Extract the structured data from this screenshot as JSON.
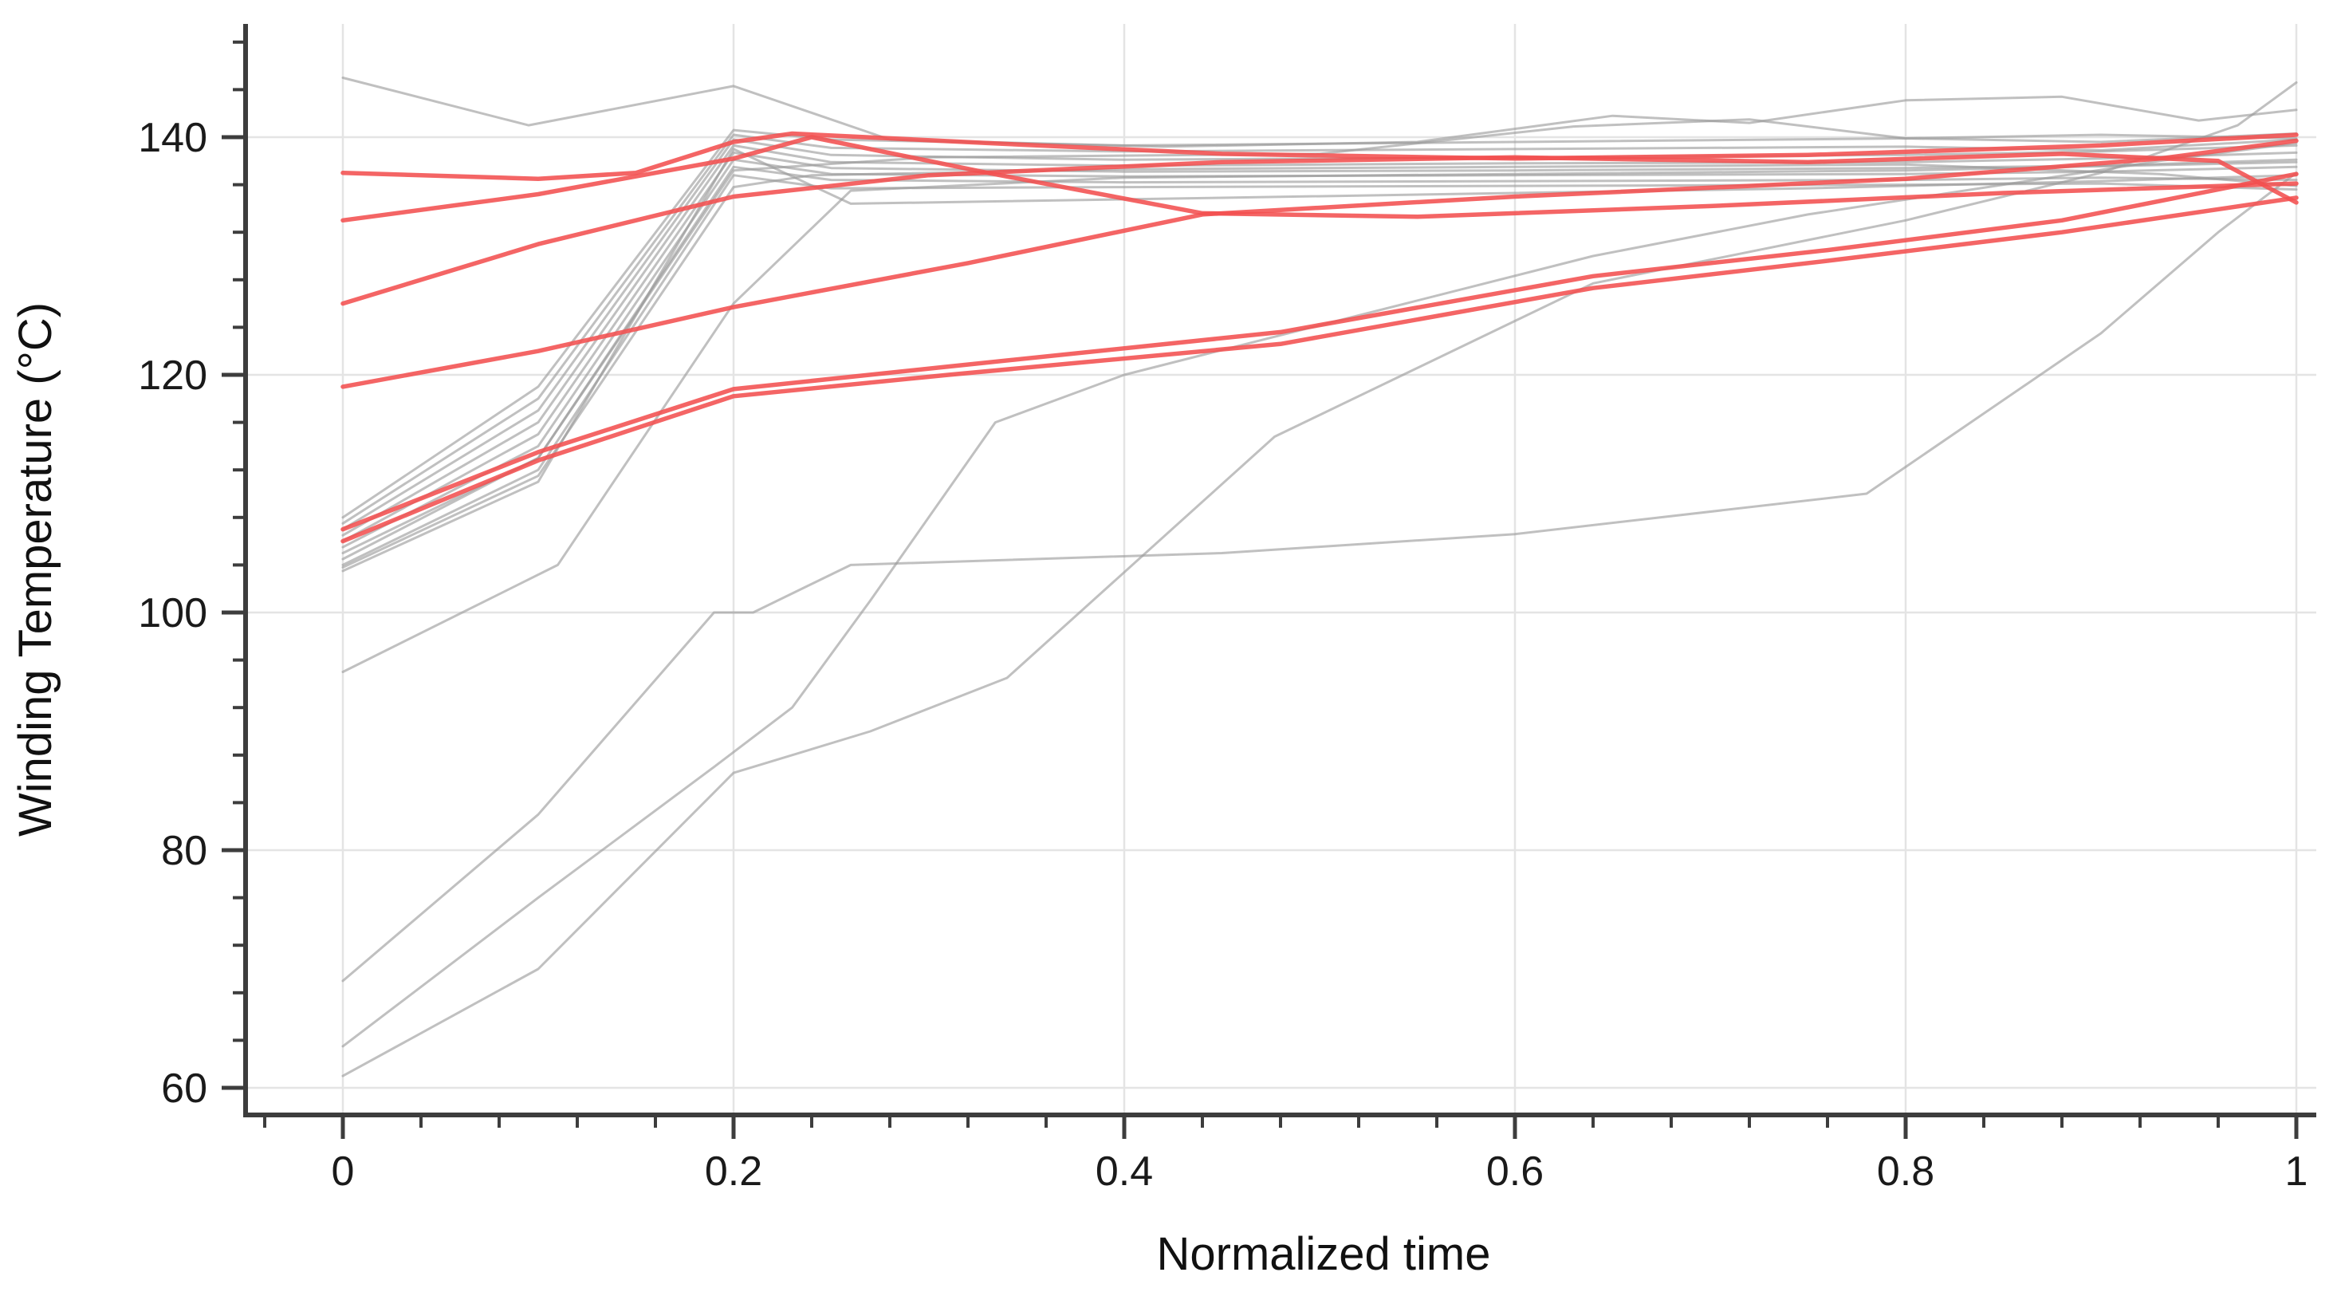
{
  "chart_data": {
    "type": "line",
    "title": "",
    "xlabel": "Normalized time",
    "ylabel": "Winding Temperature (°C)",
    "xlim": [
      0,
      1
    ],
    "ylim": [
      56,
      150
    ],
    "x_ticks": [
      0,
      0.2,
      0.4,
      0.6,
      0.8,
      1
    ],
    "x_tick_labels": [
      "0",
      "0.2",
      "0.4",
      "0.6",
      "0.8",
      "1"
    ],
    "x_minor_step": 0.04,
    "y_ticks": [
      60,
      80,
      100,
      120,
      140
    ],
    "y_tick_labels": [
      "60",
      "80",
      "100",
      "120",
      "140"
    ],
    "y_minor_step": 4,
    "grid": true,
    "legend": false,
    "colors": {
      "highlight": "#f25050",
      "base": "#9a9a9a",
      "grid": "#e4e4e4",
      "axis": "#3d3d3d",
      "text": "#111111",
      "background": "#ffffff"
    },
    "series": [
      {
        "name": "gray-1",
        "color": "gray",
        "x": [
          0,
          0.095,
          0.2,
          0.28,
          0.42,
          0.55,
          0.65,
          0.72,
          0.8,
          0.88,
          0.95,
          1
        ],
        "y": [
          145,
          141,
          144.3,
          139.8,
          139.2,
          139.6,
          141.8,
          141.2,
          143.1,
          143.4,
          141.4,
          142.3
        ]
      },
      {
        "name": "gray-2",
        "color": "gray",
        "x": [
          0,
          0.1,
          0.2,
          0.25,
          0.4,
          0.6,
          0.8,
          0.9,
          1
        ],
        "y": [
          108,
          119,
          140.6,
          139.8,
          139.3,
          139.6,
          139.9,
          139.6,
          140.3
        ]
      },
      {
        "name": "gray-3",
        "color": "gray",
        "x": [
          0,
          0.1,
          0.2,
          0.25,
          0.4,
          0.6,
          0.8,
          0.9,
          1
        ],
        "y": [
          107.5,
          118,
          140.2,
          139.1,
          138.8,
          139,
          139.2,
          138.9,
          139.8
        ]
      },
      {
        "name": "gray-4",
        "color": "gray",
        "x": [
          0,
          0.1,
          0.2,
          0.25,
          0.4,
          0.6,
          0.8,
          0.9,
          1
        ],
        "y": [
          107,
          117,
          139.8,
          138.5,
          138.1,
          138.3,
          138.5,
          138.8,
          139.3
        ]
      },
      {
        "name": "gray-5",
        "color": "gray",
        "x": [
          0,
          0.1,
          0.2,
          0.25,
          0.4,
          0.6,
          0.8,
          0.9,
          1
        ],
        "y": [
          106.5,
          116,
          139.3,
          137.9,
          137.6,
          137.8,
          137.9,
          138.2,
          138.7
        ]
      },
      {
        "name": "gray-6",
        "color": "gray",
        "x": [
          0,
          0.1,
          0.2,
          0.25,
          0.4,
          0.6,
          0.8,
          0.9,
          1
        ],
        "y": [
          106,
          115,
          138.7,
          137.4,
          137.1,
          137.2,
          137.4,
          137.6,
          138.1
        ]
      },
      {
        "name": "gray-7",
        "color": "gray",
        "x": [
          0,
          0.1,
          0.2,
          0.25,
          0.4,
          0.6,
          0.8,
          0.9,
          1
        ],
        "y": [
          105.5,
          114,
          138.1,
          136.9,
          136.7,
          136.8,
          136.9,
          137.1,
          137.5
        ]
      },
      {
        "name": "gray-8",
        "color": "gray",
        "x": [
          0,
          0.1,
          0.2,
          0.25,
          0.4,
          0.6,
          0.8,
          0.9,
          1
        ],
        "y": [
          105,
          113,
          137.5,
          136.4,
          136.2,
          136.3,
          136.4,
          136.6,
          136.4
        ]
      },
      {
        "name": "gray-9",
        "color": "gray",
        "x": [
          0,
          0.1,
          0.2,
          0.25,
          0.4,
          0.6,
          0.8,
          0.9,
          1
        ],
        "y": [
          104,
          112,
          136.8,
          135.7,
          135.8,
          135.9,
          136,
          136.1,
          135.6
        ]
      },
      {
        "name": "gray-10",
        "color": "gray",
        "x": [
          0,
          0.1,
          0.2,
          0.26,
          0.45,
          0.6,
          0.75,
          0.9,
          1
        ],
        "y": [
          103.5,
          111,
          139,
          134.4,
          134.9,
          135.3,
          135.7,
          136.3,
          136.8
        ]
      },
      {
        "name": "gray-11",
        "color": "gray",
        "x": [
          0,
          0.11,
          0.2,
          0.26,
          0.4,
          0.6,
          0.8,
          1
        ],
        "y": [
          95,
          104,
          126,
          135.5,
          136.6,
          136.9,
          137.2,
          137.9
        ]
      },
      {
        "name": "gray-12",
        "color": "gray",
        "x": [
          0,
          0.1,
          0.19,
          0.21,
          0.26,
          0.45,
          0.6,
          0.78,
          0.9,
          0.96,
          1
        ],
        "y": [
          69,
          83,
          100,
          100,
          104,
          105,
          106.6,
          110,
          123.5,
          132,
          137
        ]
      },
      {
        "name": "gray-13",
        "color": "gray",
        "x": [
          0,
          0.1,
          0.19,
          0.23,
          0.27,
          0.334,
          0.4,
          0.52,
          0.64,
          0.75,
          0.85,
          0.93,
          1
        ],
        "y": [
          63.5,
          76,
          87,
          92,
          101,
          116,
          120,
          125,
          130,
          133.5,
          136,
          138,
          139.5
        ]
      },
      {
        "name": "gray-14",
        "color": "gray",
        "x": [
          0,
          0.1,
          0.2,
          0.27,
          0.34,
          0.477,
          0.64,
          0.8,
          0.9,
          0.97,
          1
        ],
        "y": [
          61,
          70,
          86.5,
          90,
          94.5,
          114.8,
          127.7,
          133,
          137,
          141,
          144.6
        ]
      },
      {
        "name": "gray-15",
        "color": "gray",
        "x": [
          0,
          0.1,
          0.2,
          0.3,
          0.5,
          0.63,
          0.72,
          0.8,
          0.9,
          1
        ],
        "y": [
          104.5,
          113,
          137.2,
          138.3,
          138.6,
          140.9,
          141.5,
          139.9,
          140.2,
          139.9
        ]
      },
      {
        "name": "gray-16",
        "color": "gray",
        "x": [
          0,
          0.1,
          0.2,
          0.24,
          0.4,
          0.6,
          0.8,
          0.93,
          1
        ],
        "y": [
          103.8,
          111.5,
          135.8,
          136.8,
          137.3,
          137.5,
          137.7,
          136.9,
          135.9
        ]
      },
      {
        "name": "red-1",
        "color": "red",
        "x": [
          0,
          0.1,
          0.15,
          0.2,
          0.23,
          0.33,
          0.45,
          0.6,
          0.75,
          0.9,
          1
        ],
        "y": [
          137,
          136.5,
          137,
          139.6,
          140.3,
          139.5,
          138.6,
          138.2,
          138.5,
          139.3,
          140.2
        ]
      },
      {
        "name": "red-2",
        "color": "red",
        "x": [
          0,
          0.1,
          0.2,
          0.24,
          0.33,
          0.44,
          0.55,
          0.7,
          0.85,
          1
        ],
        "y": [
          133,
          135.2,
          138.2,
          140,
          137,
          133.6,
          133.3,
          134.2,
          135.3,
          136.1
        ]
      },
      {
        "name": "red-3",
        "color": "red",
        "x": [
          0,
          0.1,
          0.2,
          0.3,
          0.45,
          0.6,
          0.75,
          0.88,
          0.96,
          1
        ],
        "y": [
          126,
          131,
          135,
          136.8,
          137.9,
          138.3,
          137.9,
          138.6,
          138,
          134.5
        ]
      },
      {
        "name": "red-4",
        "color": "red",
        "x": [
          0,
          0.1,
          0.2,
          0.32,
          0.44,
          0.6,
          0.8,
          0.93,
          1
        ],
        "y": [
          119,
          122,
          125.7,
          129.4,
          133.5,
          135,
          136.5,
          138.2,
          139.7
        ]
      },
      {
        "name": "red-5",
        "color": "red",
        "x": [
          0,
          0.1,
          0.2,
          0.31,
          0.48,
          0.64,
          0.76,
          0.88,
          1
        ],
        "y": [
          107,
          113.5,
          118.8,
          120.7,
          123.6,
          128.3,
          130.5,
          133,
          136.9
        ]
      },
      {
        "name": "red-6",
        "color": "red",
        "x": [
          0,
          0.1,
          0.2,
          0.31,
          0.48,
          0.64,
          0.76,
          0.88,
          1
        ],
        "y": [
          106,
          112.8,
          118.2,
          120,
          122.6,
          127.3,
          129.6,
          132,
          134.9
        ]
      }
    ]
  }
}
